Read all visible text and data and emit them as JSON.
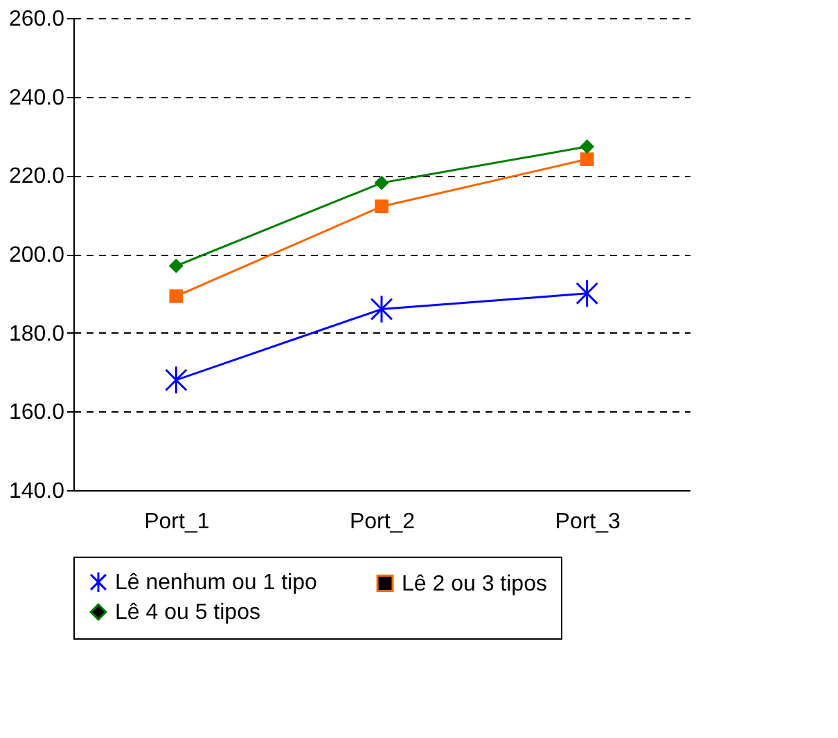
{
  "chart_data": {
    "type": "line",
    "categories": [
      "Port_1",
      "Port_2",
      "Port_3"
    ],
    "series": [
      {
        "name": "Lê nenhum ou 1 tipo",
        "color": "#0000ff",
        "marker": "cross",
        "values": [
          168,
          186,
          190
        ]
      },
      {
        "name": "Lê 2 ou 3 tipos",
        "color": "#ff6600",
        "marker": "square",
        "values": [
          189.3,
          212.1,
          224.1
        ]
      },
      {
        "name": "Lê 4 ou 5 tipos",
        "color": "#008000",
        "marker": "diamond",
        "values": [
          197,
          218.1,
          227.3
        ]
      }
    ],
    "ylim": [
      140,
      260
    ],
    "yticks": [
      {
        "value": 140,
        "label": "140.0"
      },
      {
        "value": 160,
        "label": "160.0"
      },
      {
        "value": 180,
        "label": "180.0"
      },
      {
        "value": 200,
        "label": "200.0"
      },
      {
        "value": 220,
        "label": "220.0"
      },
      {
        "value": 240,
        "label": "240.0"
      },
      {
        "value": 260,
        "label": "260.0"
      }
    ],
    "grid": "y",
    "legend": "bottom",
    "line_style": "solid"
  }
}
